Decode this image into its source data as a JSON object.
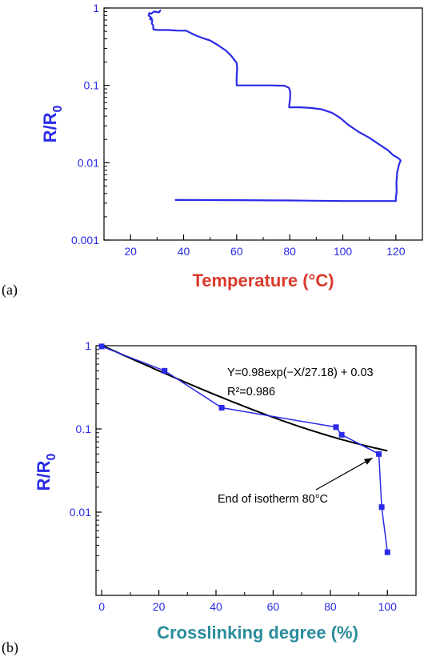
{
  "chart_data": [
    {
      "panel_label": "(a)",
      "type": "line",
      "xlabel": "Temperature (°C)",
      "ylabel_main": "R/R",
      "ylabel_sub": "0",
      "xlim": [
        10,
        130
      ],
      "ylim": [
        0.001,
        1
      ],
      "yscale": "log",
      "x_ticks": [
        20,
        40,
        60,
        80,
        100,
        120
      ],
      "y_ticks": [
        {
          "value": 0.001,
          "label": "0.001"
        },
        {
          "value": 0.01,
          "label": "0.01"
        },
        {
          "value": 0.1,
          "label": "0.1"
        },
        {
          "value": 1,
          "label": "1"
        }
      ],
      "colors": {
        "line": "#2a2ae8",
        "xlabel": "#d93a2b",
        "ylabel": "#2a2ae8",
        "axis": "#000000"
      },
      "series": [
        {
          "x": [
            31.2,
            30.8,
            28.8,
            27.8,
            27.1,
            26.8,
            28.0,
            27.3,
            28.2,
            28.0,
            28.5,
            28.6,
            30,
            34,
            38,
            41,
            44,
            47,
            50,
            53,
            56,
            58,
            60.0,
            60.2,
            60.0,
            60.0,
            61,
            66,
            72,
            78,
            79.7,
            80.2,
            80.2,
            80.0,
            79.8,
            79.8,
            80.5,
            84,
            88,
            92,
            96,
            99,
            102,
            106,
            110,
            114,
            117,
            119,
            120.5,
            121.5,
            121.8,
            121.2,
            120.5,
            120.2,
            120.3,
            120.0,
            120.0,
            110,
            100,
            80,
            60,
            40,
            37
          ],
          "y": [
            0.93,
            0.88,
            0.9,
            0.84,
            0.86,
            0.8,
            0.74,
            0.72,
            0.7,
            0.63,
            0.6,
            0.53,
            0.52,
            0.52,
            0.51,
            0.51,
            0.45,
            0.41,
            0.38,
            0.33,
            0.28,
            0.24,
            0.195,
            0.165,
            0.13,
            0.1,
            0.1,
            0.1,
            0.1,
            0.099,
            0.093,
            0.083,
            0.072,
            0.062,
            0.055,
            0.052,
            0.052,
            0.052,
            0.051,
            0.049,
            0.044,
            0.038,
            0.031,
            0.025,
            0.021,
            0.017,
            0.0145,
            0.0125,
            0.0117,
            0.011,
            0.0107,
            0.0095,
            0.0075,
            0.0055,
            0.0042,
            0.0035,
            0.0032,
            0.0032,
            0.0032,
            0.00325,
            0.00328,
            0.0033,
            0.0033
          ]
        }
      ]
    },
    {
      "panel_label": "(b)",
      "type": "line",
      "xlabel": "Crosslinking degree (%)",
      "ylabel_main": "R/R",
      "ylabel_sub": "0",
      "xlim": [
        -2,
        110
      ],
      "ylim": [
        0.001,
        1
      ],
      "yscale": "log",
      "x_ticks": [
        0,
        20,
        40,
        60,
        80,
        100
      ],
      "y_ticks": [
        {
          "value": 0.01,
          "label": "0.01"
        },
        {
          "value": 0.1,
          "label": "0.1"
        },
        {
          "value": 1,
          "label": "1"
        }
      ],
      "colors": {
        "data": "#2a2ae8",
        "fit": "#000000",
        "xlabel": "#2a8d9c",
        "ylabel": "#2a2ae8",
        "axis": "#000000"
      },
      "series": [
        {
          "x": [
            0,
            22,
            42,
            82,
            84,
            97,
            98,
            100
          ],
          "y": [
            0.98,
            0.5,
            0.18,
            0.105,
            0.085,
            0.05,
            0.0115,
            0.0033
          ]
        }
      ],
      "fit": {
        "a": 0.98,
        "tau": 27.18,
        "c": 0.03,
        "x_range": [
          0,
          100
        ]
      },
      "annotations": {
        "equation": "Y=0.98exp(−X/27.18) + 0.03",
        "r_squared": "R²=0.986",
        "arrow_note": "End of isotherm 80°C"
      }
    }
  ]
}
